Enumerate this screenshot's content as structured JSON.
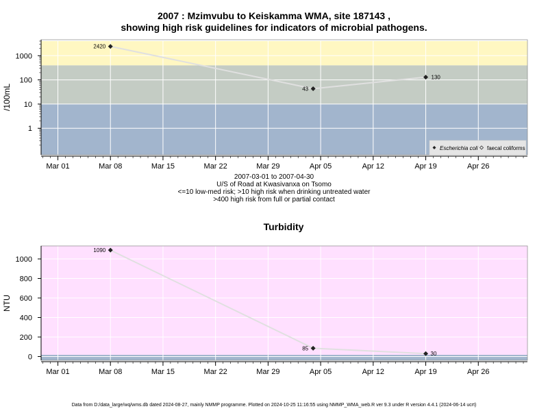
{
  "header": {
    "title_line1": "2007 : Mzimvubu to Keiskamma WMA, site 187143 ,",
    "title_line2": "showing high risk guidelines for indicators of microbial pathogens."
  },
  "info": {
    "line1": "2007-03-01 to 2007-04-30",
    "line2": "U/S of Road at Kwasivanxa on Tsomo",
    "line3": "<=10 low-med risk; >10 high risk when drinking untreated water",
    "line4": ">400 high risk from full or partial contact"
  },
  "footer": {
    "text": "Data from D:/data_large/wq/wms.db dated 2024-08-27, mainly NMMP programme. Plotted on 2024-10-25 11:16:55 using NMMP_WMA_web.R ver 9.3 under R version 4.4.1 (2024-06-14 ucrt)"
  },
  "colors": {
    "band_low": "#a2b5cd",
    "band_mid": "#c4ccc4",
    "band_high": "#fff7c2",
    "turb_bg": "#ffe0ff",
    "turb_low": "#a2b5cd",
    "series_line": "#e0e0e0",
    "point": "#222222",
    "grid": "#ffffff"
  },
  "chart_data": [
    {
      "type": "line",
      "title": "",
      "ylabel": "/100mL",
      "yscale": "log",
      "xticks": [
        "Mar 01",
        "Mar 08",
        "Mar 15",
        "Mar 22",
        "Mar 29",
        "Apr 05",
        "Apr 12",
        "Apr 19",
        "Apr 26"
      ],
      "yticks": [
        "1",
        "10",
        "100",
        "1000"
      ],
      "bands": [
        {
          "from": 0.08,
          "to": 10,
          "color": "band_low"
        },
        {
          "from": 10,
          "to": 400,
          "color": "band_mid"
        },
        {
          "from": 400,
          "to": 4000,
          "color": "band_high"
        }
      ],
      "series": [
        {
          "name": "Escherichia coli",
          "x": [
            "2007-03-08",
            "2007-04-04",
            "2007-04-19"
          ],
          "values": [
            2420,
            43,
            130
          ],
          "labels": [
            "2420",
            "43",
            "130"
          ]
        }
      ],
      "legend": {
        "position": "bottom-right",
        "entries": [
          "Escherichia coli",
          "faecal coliforms"
        ]
      }
    },
    {
      "type": "line",
      "title": "Turbidity",
      "ylabel": "NTU",
      "yscale": "linear",
      "xticks": [
        "Mar 01",
        "Mar 08",
        "Mar 15",
        "Mar 22",
        "Mar 29",
        "Apr 05",
        "Apr 12",
        "Apr 19",
        "Apr 26"
      ],
      "yticks": [
        "0",
        "200",
        "400",
        "600",
        "800",
        "1000"
      ],
      "series": [
        {
          "name": "",
          "x": [
            "2007-03-08",
            "2007-04-04",
            "2007-04-19"
          ],
          "values": [
            1090,
            85,
            30
          ],
          "labels": [
            "1090",
            "85",
            "30"
          ]
        }
      ]
    }
  ]
}
